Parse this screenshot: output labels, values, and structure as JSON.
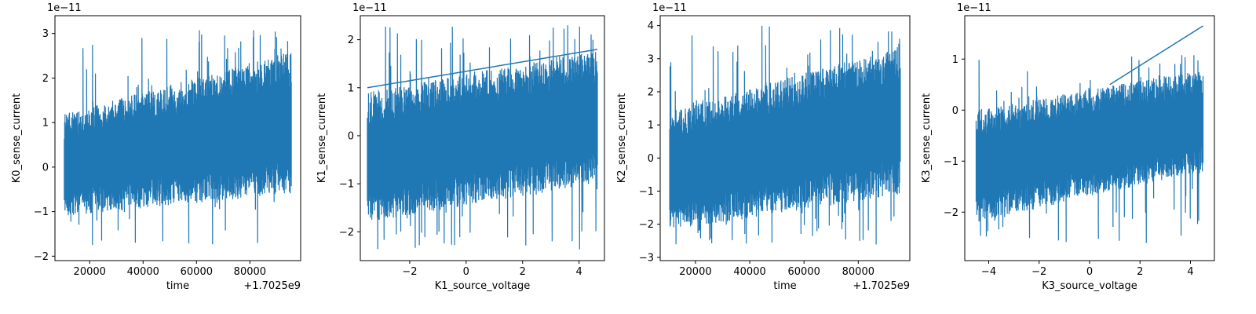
{
  "figure": {
    "background": "#ffffff",
    "line_color": "#1f77b4"
  },
  "chart_data": [
    {
      "type": "line",
      "xlabel": "time",
      "ylabel": "K0_sense_current",
      "y_multiplier_label": "1e−11",
      "x_offset_label": "+1.7025e9",
      "xlim": [
        7000,
        99000
      ],
      "ylim": [
        -2.1,
        3.4
      ],
      "x_ticks": [
        20000,
        40000,
        60000,
        80000
      ],
      "x_tick_labels": [
        "20000",
        "40000",
        "60000",
        "80000"
      ],
      "y_ticks": [
        -2,
        -1,
        0,
        1,
        2,
        3
      ],
      "y_tick_labels": [
        "−2",
        "−1",
        "0",
        "1",
        "2",
        "3"
      ],
      "series": [
        {
          "x_range": [
            10500,
            95500
          ],
          "band_low_start": -1.1,
          "band_low_end": -0.6,
          "band_high_start": 1.2,
          "band_high_end": 2.6,
          "spike_min": -1.8,
          "spike_max": 3.1,
          "trace_start": null,
          "trace_end": null
        }
      ]
    },
    {
      "type": "line",
      "xlabel": "K1_source_voltage",
      "ylabel": "K1_sense_current",
      "y_multiplier_label": "1e−11",
      "x_offset_label": "",
      "xlim": [
        -3.75,
        4.9
      ],
      "ylim": [
        -2.6,
        2.5
      ],
      "x_ticks": [
        -2,
        0,
        2,
        4
      ],
      "x_tick_labels": [
        "−2",
        "0",
        "2",
        "4"
      ],
      "y_ticks": [
        -2,
        -1,
        0,
        1,
        2
      ],
      "y_tick_labels": [
        "−2",
        "−1",
        "0",
        "1",
        "2"
      ],
      "series": [
        {
          "x_range": [
            -3.5,
            4.65
          ],
          "band_low_start": -1.8,
          "band_low_end": -1.0,
          "band_high_start": 0.9,
          "band_high_end": 1.8,
          "spike_min": -2.4,
          "spike_max": 2.3,
          "trace_start": [
            -3.5,
            1.0
          ],
          "trace_end": [
            4.65,
            1.8
          ]
        }
      ]
    },
    {
      "type": "line",
      "xlabel": "time",
      "ylabel": "K2_sense_current",
      "y_multiplier_label": "1e−11",
      "x_offset_label": "+1.7025e9",
      "xlim": [
        7000,
        99000
      ],
      "ylim": [
        -3.1,
        4.3
      ],
      "x_ticks": [
        20000,
        40000,
        60000,
        80000
      ],
      "x_tick_labels": [
        "20000",
        "40000",
        "60000",
        "80000"
      ],
      "y_ticks": [
        -3,
        -2,
        -1,
        0,
        1,
        2,
        3,
        4
      ],
      "y_tick_labels": [
        "−3",
        "−2",
        "−1",
        "0",
        "1",
        "2",
        "3",
        "4"
      ],
      "series": [
        {
          "x_range": [
            10500,
            95500
          ],
          "band_low_start": -2.2,
          "band_low_end": -1.1,
          "band_high_start": 1.4,
          "band_high_end": 3.4,
          "spike_min": -2.7,
          "spike_max": 4.0,
          "trace_start": null,
          "trace_end": null
        }
      ]
    },
    {
      "type": "line",
      "xlabel": "K3_source_voltage",
      "ylabel": "K3_sense_current",
      "y_multiplier_label": "1e−11",
      "x_offset_label": "",
      "xlim": [
        -4.95,
        4.95
      ],
      "ylim": [
        -2.95,
        1.85
      ],
      "x_ticks": [
        -4,
        -2,
        0,
        2,
        4
      ],
      "x_tick_labels": [
        "−4",
        "−2",
        "0",
        "2",
        "4"
      ],
      "y_ticks": [
        -2,
        -1,
        0,
        1
      ],
      "y_tick_labels": [
        "−2",
        "−1",
        "0",
        "1"
      ],
      "series": [
        {
          "x_range": [
            -4.5,
            4.5
          ],
          "band_low_start": -2.2,
          "band_low_end": -1.2,
          "band_high_start": 0.0,
          "band_high_end": 0.8,
          "spike_min": -2.7,
          "spike_max": 1.1,
          "trace_start": [
            0.8,
            0.5
          ],
          "trace_end": [
            4.5,
            1.65
          ]
        }
      ]
    }
  ]
}
